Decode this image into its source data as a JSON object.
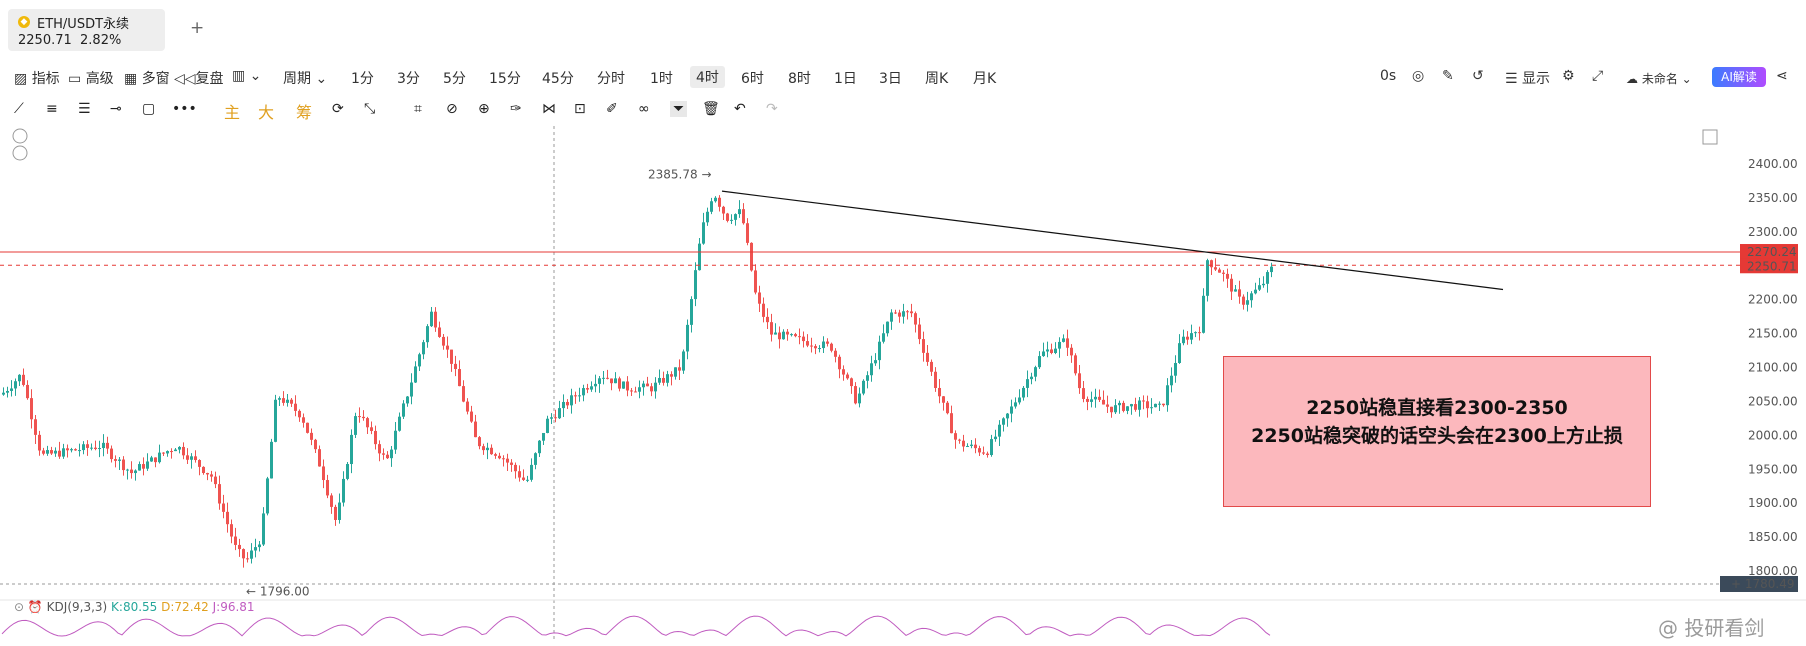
{
  "tab": {
    "symbol": "ETH/USDT永续",
    "price": "2250.71",
    "change": "2.82%",
    "add": "+"
  },
  "toolbar": {
    "left_items": [
      "指标",
      "高级",
      "多窗",
      "复盘"
    ],
    "period_label": "周期",
    "intervals": [
      "1分",
      "3分",
      "5分",
      "15分",
      "45分",
      "分时",
      "1时",
      "4时",
      "6时",
      "8时",
      "1日",
      "3日",
      "周K",
      "月K"
    ],
    "selected_interval": "4时",
    "right": {
      "countdown": "0s",
      "display": "显示",
      "layout_name": "未命名",
      "ai": "AI解读"
    }
  },
  "draw_toolbar": {
    "chips": [
      "主",
      "大",
      "筹"
    ]
  },
  "chart_data": {
    "type": "candlestick",
    "y_ticks": [
      "2400.00",
      "2350.00",
      "2300.00",
      "2250.00",
      "2200.00",
      "2150.00",
      "2100.00",
      "2050.00",
      "2000.00",
      "1950.00",
      "1900.00",
      "1850.00",
      "1800.00"
    ],
    "ylim": [
      1780,
      2420
    ],
    "high_label": "2385.78",
    "low_label": "1796.00",
    "current_price": "2250.71",
    "level_line": "2270.24",
    "cursor_price": "1780.49",
    "trendline": {
      "from": 2360,
      "to": 2215
    },
    "colors": {
      "up": "#26a69a",
      "down": "#ef5350",
      "level": "#e53935"
    }
  },
  "annotation": {
    "line1": "2250站稳直接看2300-2350",
    "line2": "2250站稳突破的话空头会在2300上方止损"
  },
  "indicator": {
    "name": "KDJ(9,3,3)",
    "k": "K:80.55",
    "d": "D:72.42",
    "j": "J:96.81"
  },
  "watermark": "@ 投研看剑"
}
